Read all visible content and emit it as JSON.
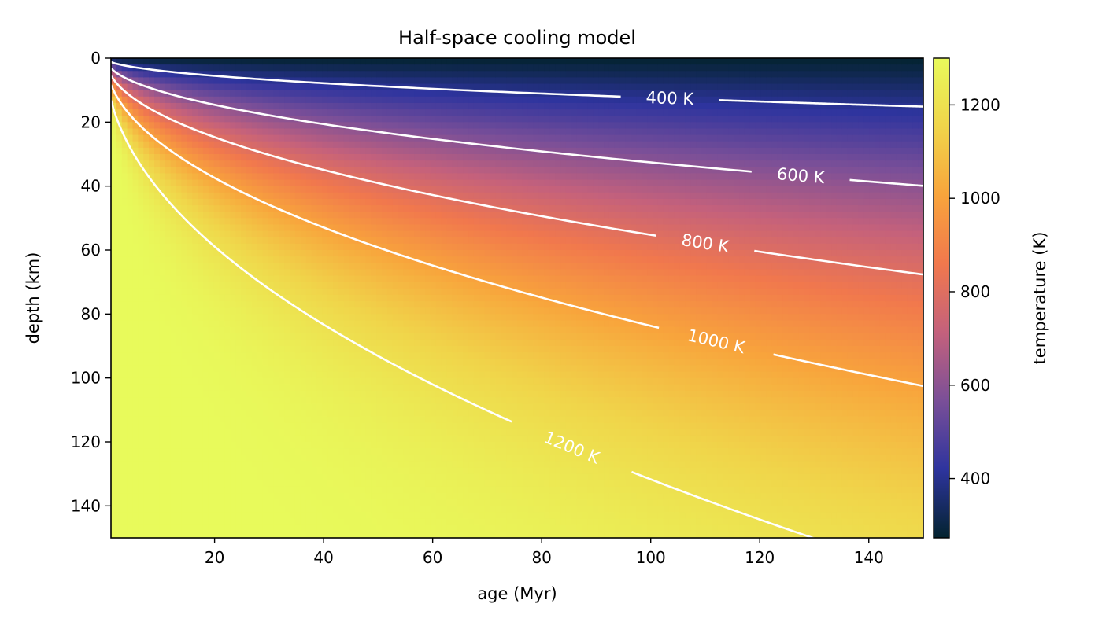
{
  "chart_data": {
    "type": "heatmap",
    "title": "Half-space cooling model",
    "xlabel": "age (Myr)",
    "ylabel": "depth (km)",
    "xlim": [
      1,
      150
    ],
    "ylim": [
      150,
      0
    ],
    "y_inverted": true,
    "x_ticks": [
      20,
      40,
      60,
      80,
      100,
      120,
      140
    ],
    "y_ticks": [
      0,
      20,
      40,
      60,
      80,
      100,
      120,
      140
    ],
    "model": {
      "surface_temperature_K": 273,
      "mantle_temperature_K": 1300,
      "thermal_diffusivity_m2_per_s": 1e-06
    },
    "colorbar": {
      "label": "temperature (K)",
      "range": [
        273,
        1300
      ],
      "ticks": [
        400,
        600,
        800,
        1000,
        1200
      ],
      "colormap": [
        "#03232f",
        "#2e349e",
        "#7a4f98",
        "#c4617c",
        "#f1784d",
        "#f8a43c",
        "#f0d54a",
        "#e8fa5b"
      ]
    },
    "contours": [
      {
        "level": 400,
        "label": "400 K"
      },
      {
        "level": 600,
        "label": "600 K"
      },
      {
        "level": 800,
        "label": "800 K"
      },
      {
        "level": 1000,
        "label": "1000 K"
      },
      {
        "level": 1200,
        "label": "1200 K"
      }
    ],
    "grid": false,
    "legend": "none"
  }
}
